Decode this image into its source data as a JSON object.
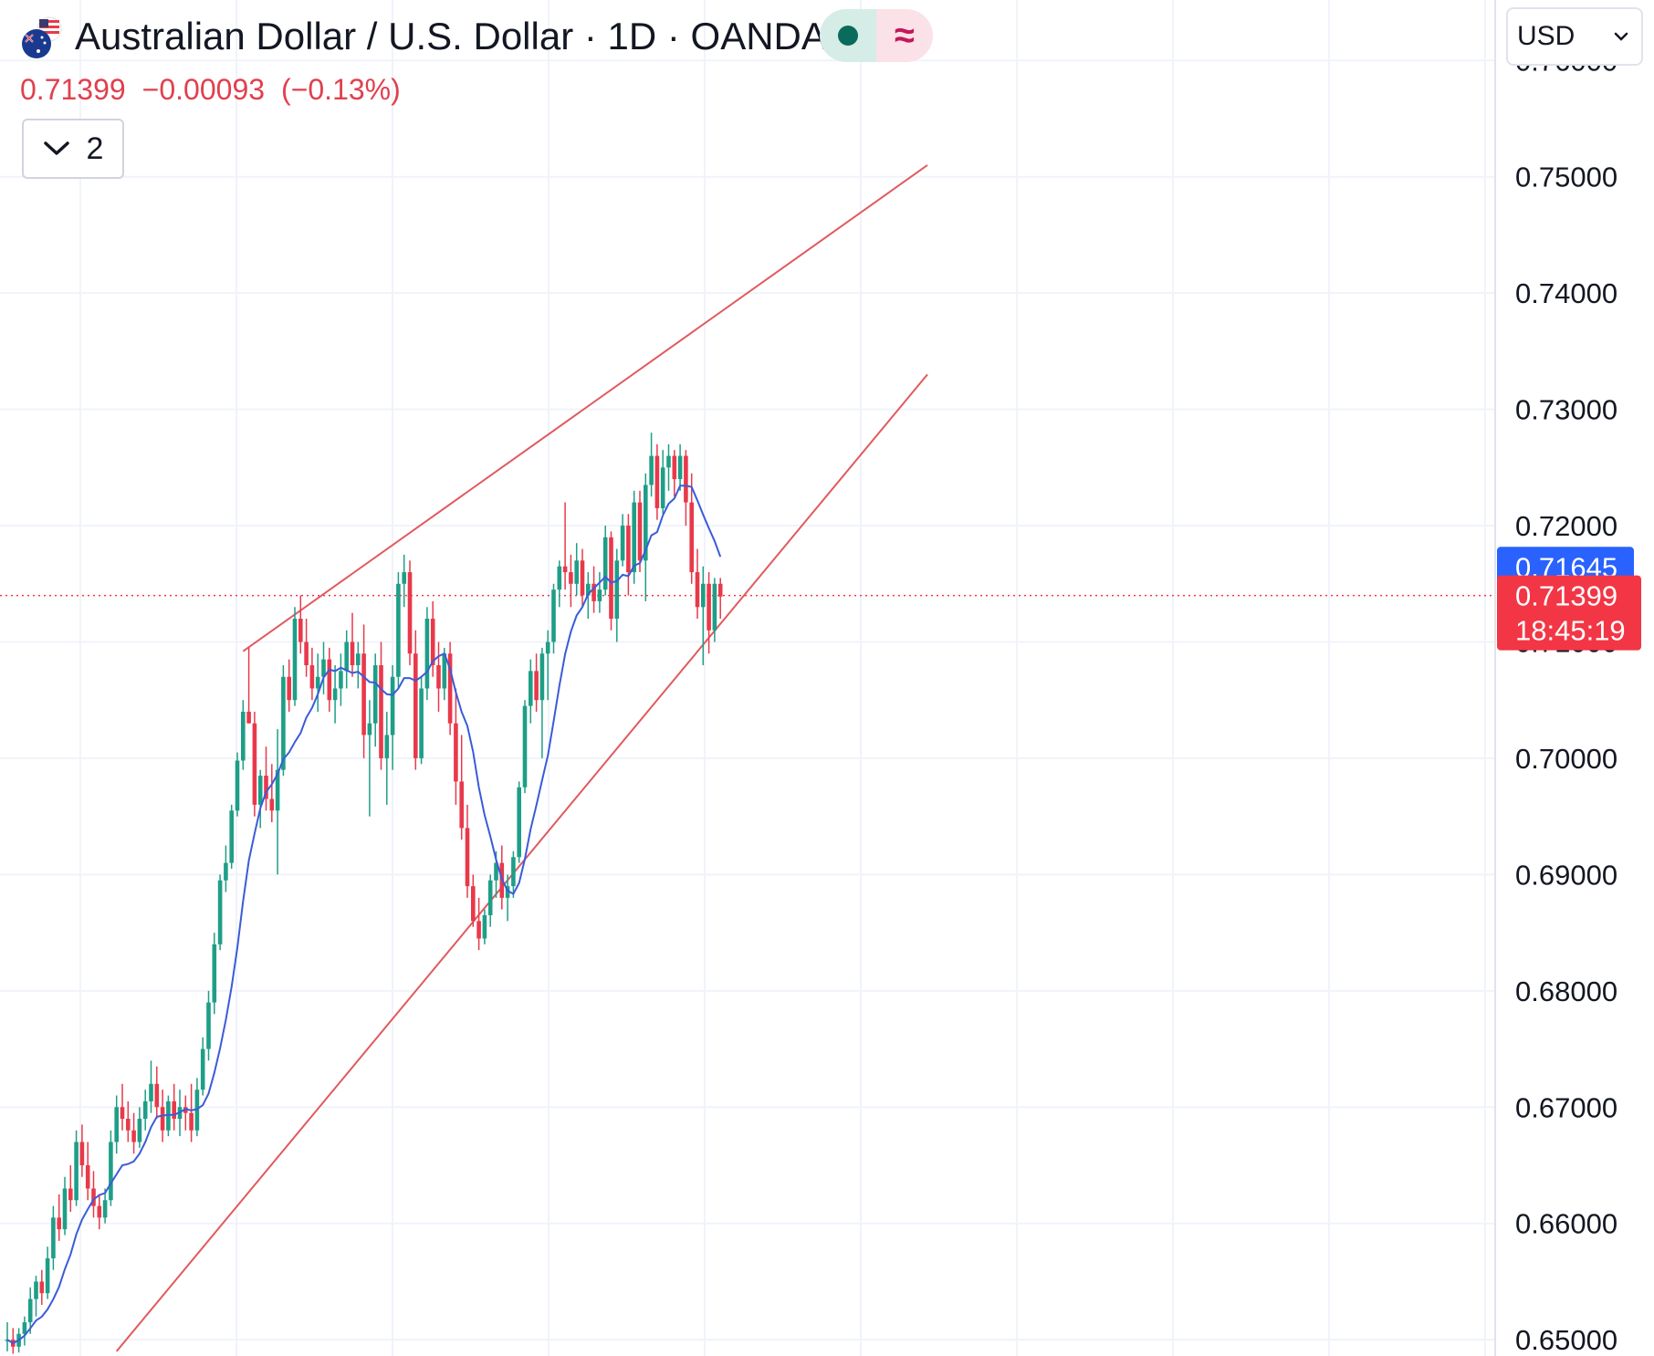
{
  "header": {
    "title": "Australian Dollar / U.S. Dollar · 1D · OANDA",
    "flag_icon": "aud-usd-flags-icon",
    "status_icon": "market-status-icon",
    "wave_icon": "≈"
  },
  "quote": {
    "last": "0.71399",
    "change": "−0.00093",
    "change_pct": "(−0.13%)",
    "color": "#e0404f"
  },
  "indicators_toggle": {
    "count": "2"
  },
  "currency_select": {
    "value": "USD"
  },
  "colors": {
    "up": "#1e9e87",
    "down": "#e8394a",
    "ma": "#3a5bd9",
    "trendline": "#e05a5e",
    "last_price_tag": "#f23645",
    "ma_tag": "#2962ff"
  },
  "chart_data": {
    "type": "candlestick",
    "symbol": "AUDUSD",
    "interval": "1D",
    "y_axis": {
      "ticks": [
        "0.76000",
        "0.75000",
        "0.74000",
        "0.73000",
        "0.72000",
        "0.71000",
        "0.70000",
        "0.69000",
        "0.68000",
        "0.67000",
        "0.66000",
        "0.65000"
      ],
      "range": [
        0.6486,
        0.7652
      ]
    },
    "price_tags": [
      {
        "name": "ma",
        "value": 0.71645,
        "label": "0.71645"
      },
      {
        "name": "last",
        "value": 0.71399,
        "label": "0.71399",
        "countdown": "18:45:19"
      }
    ],
    "last_price_line": 0.71399,
    "grid": true,
    "series": [
      {
        "type": "candlestick",
        "ohlc_step": "daily",
        "ohlc": [
          [
            0.65,
            0.6515,
            0.649,
            0.65
          ],
          [
            0.65,
            0.651,
            0.6488,
            0.6494
          ],
          [
            0.6494,
            0.651,
            0.6489,
            0.6505
          ],
          [
            0.6505,
            0.652,
            0.6495,
            0.6515
          ],
          [
            0.6515,
            0.6545,
            0.6505,
            0.6535
          ],
          [
            0.6535,
            0.6555,
            0.652,
            0.655
          ],
          [
            0.655,
            0.656,
            0.653,
            0.654
          ],
          [
            0.654,
            0.658,
            0.6535,
            0.657
          ],
          [
            0.657,
            0.6615,
            0.656,
            0.6605
          ],
          [
            0.6605,
            0.6625,
            0.6585,
            0.6595
          ],
          [
            0.6595,
            0.664,
            0.659,
            0.663
          ],
          [
            0.663,
            0.665,
            0.661,
            0.662
          ],
          [
            0.662,
            0.668,
            0.6615,
            0.667
          ],
          [
            0.667,
            0.6685,
            0.664,
            0.665
          ],
          [
            0.665,
            0.667,
            0.662,
            0.663
          ],
          [
            0.663,
            0.6645,
            0.6605,
            0.6615
          ],
          [
            0.6615,
            0.6625,
            0.6595,
            0.6605
          ],
          [
            0.6605,
            0.663,
            0.66,
            0.662
          ],
          [
            0.662,
            0.668,
            0.6615,
            0.667
          ],
          [
            0.667,
            0.671,
            0.666,
            0.67
          ],
          [
            0.67,
            0.672,
            0.668,
            0.669
          ],
          [
            0.669,
            0.6705,
            0.667,
            0.668
          ],
          [
            0.668,
            0.6695,
            0.666,
            0.667
          ],
          [
            0.667,
            0.67,
            0.6665,
            0.669
          ],
          [
            0.669,
            0.6715,
            0.668,
            0.6705
          ],
          [
            0.6705,
            0.674,
            0.6695,
            0.672
          ],
          [
            0.672,
            0.6735,
            0.669,
            0.67
          ],
          [
            0.67,
            0.6715,
            0.667,
            0.668
          ],
          [
            0.668,
            0.671,
            0.6675,
            0.6705
          ],
          [
            0.6705,
            0.672,
            0.668,
            0.669
          ],
          [
            0.669,
            0.6715,
            0.6675,
            0.67
          ],
          [
            0.67,
            0.671,
            0.668,
            0.6695
          ],
          [
            0.6695,
            0.672,
            0.667,
            0.668
          ],
          [
            0.668,
            0.6725,
            0.6675,
            0.6715
          ],
          [
            0.6715,
            0.676,
            0.671,
            0.675
          ],
          [
            0.675,
            0.68,
            0.674,
            0.679
          ],
          [
            0.679,
            0.685,
            0.678,
            0.684
          ],
          [
            0.684,
            0.69,
            0.6835,
            0.6895
          ],
          [
            0.6895,
            0.6925,
            0.6885,
            0.691
          ],
          [
            0.691,
            0.696,
            0.6905,
            0.6955
          ],
          [
            0.6955,
            0.7005,
            0.695,
            0.6998
          ],
          [
            0.6998,
            0.705,
            0.699,
            0.704
          ],
          [
            0.704,
            0.7095,
            0.703,
            0.703
          ],
          [
            0.703,
            0.704,
            0.695,
            0.696
          ],
          [
            0.696,
            0.699,
            0.694,
            0.6985
          ],
          [
            0.6985,
            0.701,
            0.6955,
            0.6965
          ],
          [
            0.6965,
            0.6995,
            0.6945,
            0.6955
          ],
          [
            0.6955,
            0.7025,
            0.69,
            0.699
          ],
          [
            0.699,
            0.708,
            0.6985,
            0.707
          ],
          [
            0.707,
            0.7085,
            0.704,
            0.705
          ],
          [
            0.705,
            0.713,
            0.7045,
            0.712
          ],
          [
            0.712,
            0.714,
            0.709,
            0.71
          ],
          [
            0.71,
            0.712,
            0.707,
            0.708
          ],
          [
            0.708,
            0.7095,
            0.705,
            0.706
          ],
          [
            0.706,
            0.709,
            0.704,
            0.707
          ],
          [
            0.707,
            0.71,
            0.7055,
            0.7085
          ],
          [
            0.7085,
            0.7095,
            0.704,
            0.705
          ],
          [
            0.705,
            0.708,
            0.703,
            0.706
          ],
          [
            0.706,
            0.709,
            0.7045,
            0.7075
          ],
          [
            0.7075,
            0.711,
            0.706,
            0.71
          ],
          [
            0.71,
            0.7125,
            0.707,
            0.708
          ],
          [
            0.708,
            0.71,
            0.706,
            0.709
          ],
          [
            0.709,
            0.7115,
            0.7,
            0.702
          ],
          [
            0.702,
            0.705,
            0.695,
            0.703
          ],
          [
            0.703,
            0.709,
            0.701,
            0.708
          ],
          [
            0.708,
            0.71,
            0.699,
            0.7
          ],
          [
            0.7,
            0.704,
            0.696,
            0.702
          ],
          [
            0.702,
            0.708,
            0.699,
            0.707
          ],
          [
            0.707,
            0.716,
            0.706,
            0.715
          ],
          [
            0.715,
            0.7175,
            0.713,
            0.716
          ],
          [
            0.716,
            0.717,
            0.708,
            0.709
          ],
          [
            0.709,
            0.711,
            0.699,
            0.7
          ],
          [
            0.7,
            0.707,
            0.6995,
            0.706
          ],
          [
            0.706,
            0.713,
            0.705,
            0.712
          ],
          [
            0.712,
            0.7135,
            0.707,
            0.708
          ],
          [
            0.708,
            0.71,
            0.704,
            0.706
          ],
          [
            0.706,
            0.7095,
            0.705,
            0.709
          ],
          [
            0.709,
            0.71,
            0.702,
            0.703
          ],
          [
            0.703,
            0.706,
            0.696,
            0.698
          ],
          [
            0.698,
            0.702,
            0.693,
            0.694
          ],
          [
            0.694,
            0.696,
            0.688,
            0.689
          ],
          [
            0.689,
            0.69,
            0.6855,
            0.686
          ],
          [
            0.686,
            0.688,
            0.6835,
            0.6845
          ],
          [
            0.6845,
            0.687,
            0.684,
            0.6865
          ],
          [
            0.6865,
            0.69,
            0.6855,
            0.6895
          ],
          [
            0.6895,
            0.692,
            0.688,
            0.691
          ],
          [
            0.691,
            0.6925,
            0.687,
            0.688
          ],
          [
            0.688,
            0.69,
            0.686,
            0.689
          ],
          [
            0.689,
            0.692,
            0.688,
            0.6915
          ],
          [
            0.6915,
            0.698,
            0.691,
            0.6975
          ],
          [
            0.6975,
            0.705,
            0.697,
            0.7045
          ],
          [
            0.7045,
            0.7085,
            0.703,
            0.7075
          ],
          [
            0.7075,
            0.709,
            0.704,
            0.705
          ],
          [
            0.705,
            0.7095,
            0.7,
            0.709
          ],
          [
            0.709,
            0.711,
            0.705,
            0.71
          ],
          [
            0.71,
            0.715,
            0.709,
            0.7145
          ],
          [
            0.7145,
            0.717,
            0.713,
            0.7165
          ],
          [
            0.7165,
            0.722,
            0.7145,
            0.716
          ],
          [
            0.716,
            0.7175,
            0.713,
            0.715
          ],
          [
            0.715,
            0.7185,
            0.714,
            0.717
          ],
          [
            0.717,
            0.718,
            0.713,
            0.714
          ],
          [
            0.714,
            0.716,
            0.712,
            0.715
          ],
          [
            0.715,
            0.7165,
            0.7125,
            0.7135
          ],
          [
            0.7135,
            0.716,
            0.7125,
            0.7145
          ],
          [
            0.7145,
            0.72,
            0.714,
            0.719
          ],
          [
            0.719,
            0.7195,
            0.711,
            0.712
          ],
          [
            0.712,
            0.718,
            0.71,
            0.717
          ],
          [
            0.717,
            0.721,
            0.7165,
            0.72
          ],
          [
            0.72,
            0.721,
            0.714,
            0.716
          ],
          [
            0.716,
            0.723,
            0.715,
            0.722
          ],
          [
            0.722,
            0.723,
            0.716,
            0.717
          ],
          [
            0.717,
            0.7245,
            0.7135,
            0.7235
          ],
          [
            0.7235,
            0.728,
            0.7225,
            0.726
          ],
          [
            0.726,
            0.727,
            0.7205,
            0.7215
          ],
          [
            0.7215,
            0.7265,
            0.721,
            0.725
          ],
          [
            0.725,
            0.727,
            0.723,
            0.726
          ],
          [
            0.726,
            0.7265,
            0.7225,
            0.724
          ],
          [
            0.724,
            0.727,
            0.723,
            0.726
          ],
          [
            0.726,
            0.7265,
            0.72,
            0.722
          ],
          [
            0.722,
            0.7245,
            0.715,
            0.716
          ],
          [
            0.716,
            0.718,
            0.712,
            0.713
          ],
          [
            0.713,
            0.7165,
            0.708,
            0.715
          ],
          [
            0.715,
            0.716,
            0.709,
            0.711
          ],
          [
            0.711,
            0.7155,
            0.71,
            0.715
          ],
          [
            0.715,
            0.7155,
            0.712,
            0.7139
          ]
        ]
      },
      {
        "type": "line",
        "smoothing": 9
      }
    ],
    "trendlines": [
      {
        "name": "upper",
        "from": {
          "bar": 41,
          "price": 0.7092
        },
        "to": {
          "bar": 160,
          "price": 0.751
        }
      },
      {
        "name": "lower",
        "from": {
          "bar": 19,
          "price": 0.649
        },
        "to": {
          "bar": 160,
          "price": 0.733
        }
      }
    ]
  }
}
